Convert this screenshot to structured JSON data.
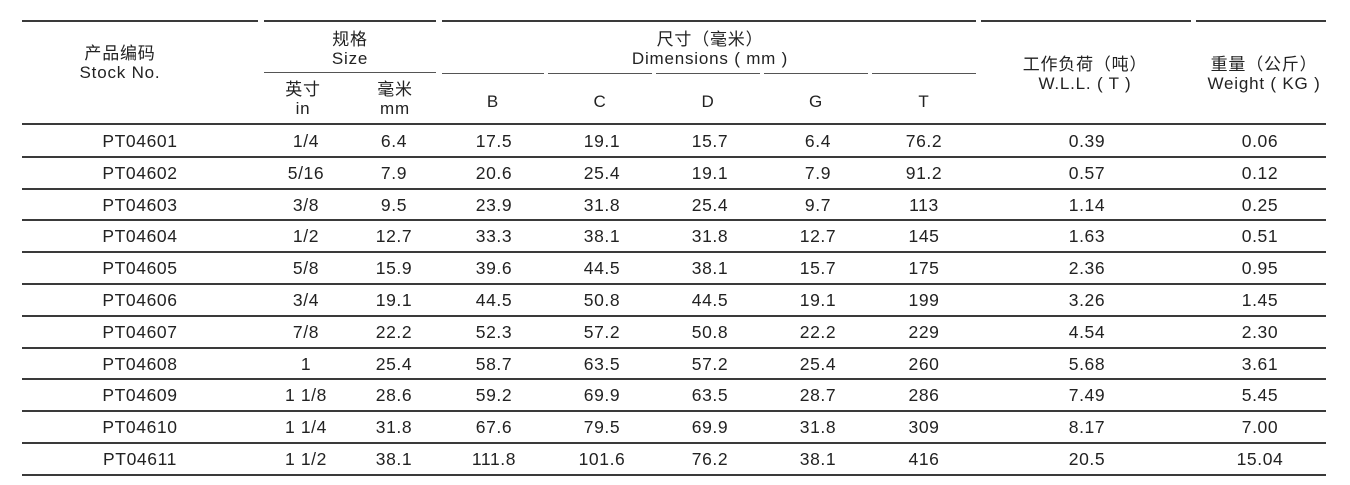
{
  "headers": {
    "stock_cn": "产品编码",
    "stock_en": "Stock No.",
    "size_cn": "规格",
    "size_en": "Size",
    "in_cn": "英寸",
    "in_en": "in",
    "mm_cn": "毫米",
    "mm_en": "mm",
    "dims_cn": "尺寸（毫米）",
    "dims_en": "Dimensions ( mm )",
    "b": "B",
    "c": "C",
    "d": "D",
    "g": "G",
    "t": "T",
    "wll_cn": "工作负荷（吨）",
    "wll_en": "W.L.L. ( T )",
    "weight_cn": "重量（公斤）",
    "weight_en": "Weight ( KG )"
  },
  "rows": [
    [
      "PT04601",
      "1/4",
      "6.4",
      "17.5",
      "19.1",
      "15.7",
      "6.4",
      "76.2",
      "0.39",
      "0.06"
    ],
    [
      "PT04602",
      "5/16",
      "7.9",
      "20.6",
      "25.4",
      "19.1",
      "7.9",
      "91.2",
      "0.57",
      "0.12"
    ],
    [
      "PT04603",
      "3/8",
      "9.5",
      "23.9",
      "31.8",
      "25.4",
      "9.7",
      "113",
      "1.14",
      "0.25"
    ],
    [
      "PT04604",
      "1/2",
      "12.7",
      "33.3",
      "38.1",
      "31.8",
      "12.7",
      "145",
      "1.63",
      "0.51"
    ],
    [
      "PT04605",
      "5/8",
      "15.9",
      "39.6",
      "44.5",
      "38.1",
      "15.7",
      "175",
      "2.36",
      "0.95"
    ],
    [
      "PT04606",
      "3/4",
      "19.1",
      "44.5",
      "50.8",
      "44.5",
      "19.1",
      "199",
      "3.26",
      "1.45"
    ],
    [
      "PT04607",
      "7/8",
      "22.2",
      "52.3",
      "57.2",
      "50.8",
      "22.2",
      "229",
      "4.54",
      "2.30"
    ],
    [
      "PT04608",
      "1",
      "25.4",
      "58.7",
      "63.5",
      "57.2",
      "25.4",
      "260",
      "5.68",
      "3.61"
    ],
    [
      "PT04609",
      "1 1/8",
      "28.6",
      "59.2",
      "69.9",
      "63.5",
      "28.7",
      "286",
      "7.49",
      "5.45"
    ],
    [
      "PT04610",
      "1 1/4",
      "31.8",
      "67.6",
      "79.5",
      "69.9",
      "31.8",
      "309",
      "8.17",
      "7.00"
    ],
    [
      "PT04611",
      "1 1/2",
      "38.1",
      "111.8",
      "101.6",
      "76.2",
      "38.1",
      "416",
      "20.5",
      "15.04"
    ]
  ]
}
